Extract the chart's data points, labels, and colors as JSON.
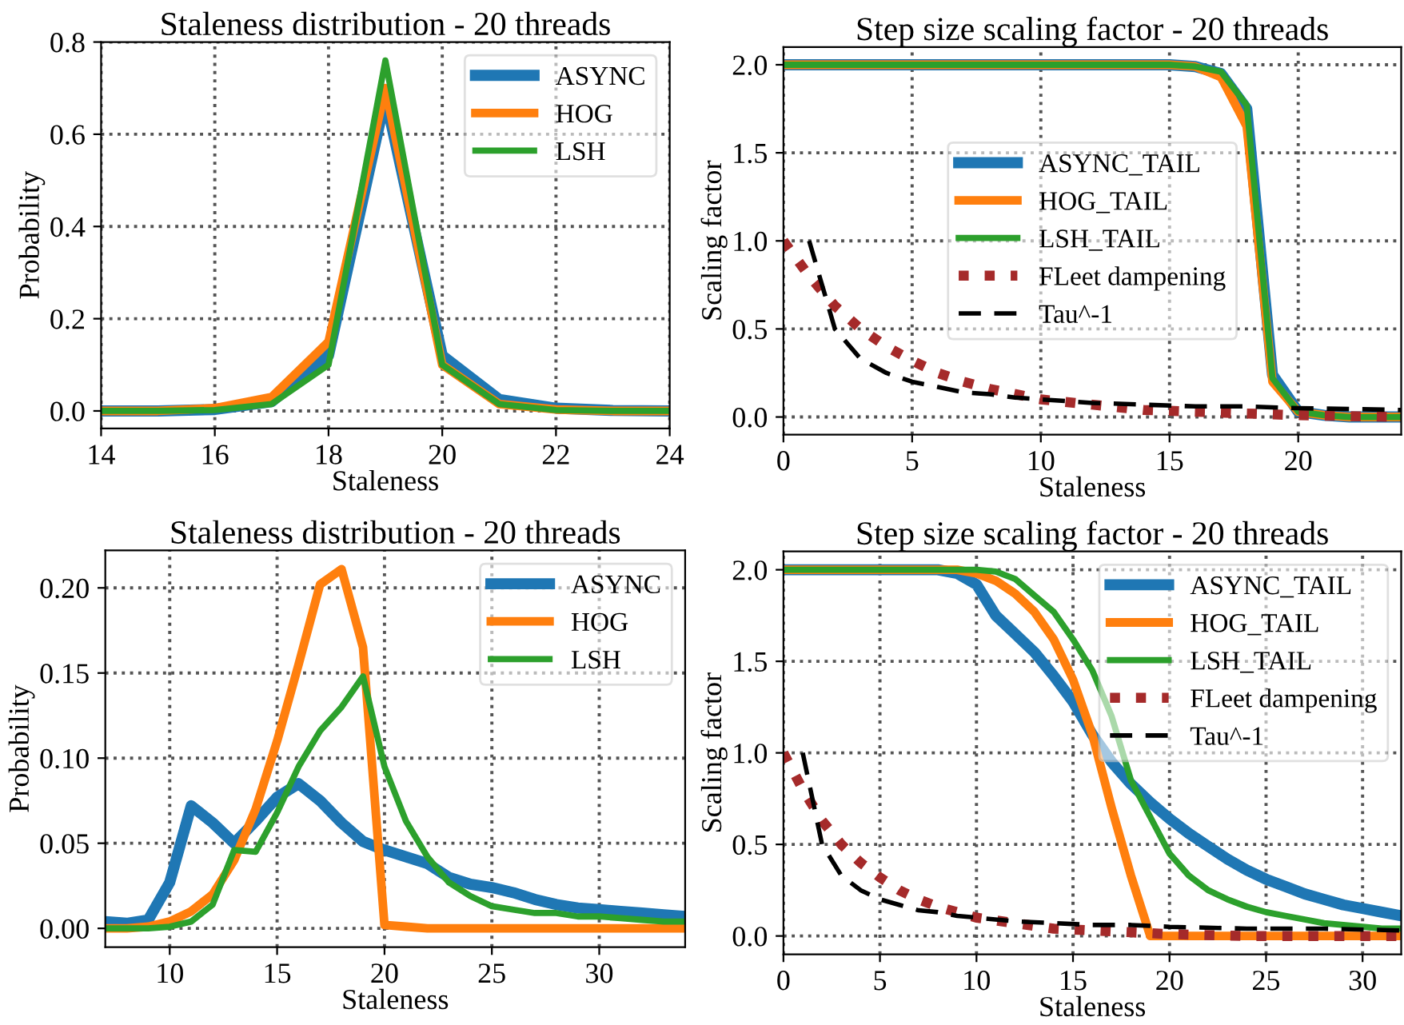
{
  "chart_data": [
    {
      "type": "line",
      "title": "Staleness distribution - 20 threads",
      "xlabel": "Staleness",
      "ylabel": "Probability",
      "xlim": [
        14,
        24
      ],
      "ylim": [
        -0.038,
        0.8
      ],
      "xticks": [
        14,
        16,
        18,
        20,
        22,
        24
      ],
      "yticks": [
        {
          "value": 0,
          "label": "0.0"
        },
        0.2,
        0.4,
        0.6,
        0.8
      ],
      "grid": true,
      "legend": "top right",
      "series": [
        {
          "name": "ASYNC",
          "color": "#1f77b4",
          "x": [
            14,
            15,
            16,
            17,
            18,
            19,
            20,
            21,
            22,
            23,
            24
          ],
          "values": [
            0,
            0,
            0.003,
            0.02,
            0.12,
            0.68,
            0.12,
            0.025,
            0.006,
            0.001,
            0
          ]
        },
        {
          "name": "HOG",
          "color": "#ff7f0e",
          "x": [
            14,
            15,
            16,
            17,
            18,
            19,
            20,
            21,
            22,
            23,
            24
          ],
          "values": [
            0,
            0,
            0.006,
            0.03,
            0.15,
            0.7,
            0.1,
            0.015,
            0.003,
            0,
            0
          ]
        },
        {
          "name": "LSH",
          "color": "#2ca02c",
          "x": [
            14,
            15,
            16,
            17,
            18,
            19,
            20,
            21,
            22,
            23,
            24
          ],
          "values": [
            0,
            0,
            0.002,
            0.015,
            0.1,
            0.76,
            0.1,
            0.015,
            0.002,
            0,
            0
          ]
        }
      ]
    },
    {
      "type": "line",
      "title": "Step size scaling factor - 20 threads",
      "xlabel": "Staleness",
      "ylabel": "Scaling factor",
      "xlim": [
        0,
        24
      ],
      "ylim": [
        -0.1,
        2.1
      ],
      "xticks": [
        0,
        5,
        10,
        15,
        20
      ],
      "yticks": [
        {
          "value": 0,
          "label": "0.0"
        },
        0.5,
        {
          "value": 1,
          "label": "1.0"
        },
        1.5,
        {
          "value": 2,
          "label": "2.0"
        }
      ],
      "grid": true,
      "legend": "center",
      "series": [
        {
          "name": "ASYNC_TAIL",
          "color": "#1f77b4",
          "x": [
            0,
            5,
            10,
            15,
            16,
            17,
            18,
            19,
            20,
            21,
            22,
            23,
            24
          ],
          "values": [
            2,
            2,
            2,
            2,
            1.99,
            1.95,
            1.75,
            0.24,
            0.03,
            0.01,
            0,
            0,
            0
          ]
        },
        {
          "name": "HOG_TAIL",
          "color": "#ff7f0e",
          "x": [
            0,
            5,
            10,
            15,
            16,
            17,
            18,
            19,
            20,
            21,
            22,
            23,
            24
          ],
          "values": [
            2,
            2,
            2,
            2,
            1.99,
            1.93,
            1.65,
            0.2,
            0.03,
            0.01,
            0,
            0,
            0
          ]
        },
        {
          "name": "LSH_TAIL",
          "color": "#2ca02c",
          "x": [
            0,
            5,
            10,
            15,
            16,
            17,
            18,
            19,
            20,
            21,
            22,
            23,
            24
          ],
          "values": [
            2,
            2,
            2,
            2,
            1.99,
            1.96,
            1.77,
            0.22,
            0.03,
            0.01,
            0,
            0,
            0
          ]
        },
        {
          "name": "FLeet dampening",
          "color": "#a52a2a",
          "line_style": "dotted",
          "x": [
            0,
            1,
            2,
            3,
            4,
            5,
            6,
            7,
            8,
            10,
            12,
            14,
            16,
            18,
            20,
            24
          ],
          "values": [
            1.0,
            0.8,
            0.63,
            0.5,
            0.4,
            0.32,
            0.25,
            0.2,
            0.16,
            0.1,
            0.07,
            0.04,
            0.03,
            0.02,
            0.01,
            0
          ]
        },
        {
          "name": "Tau^-1",
          "color": "#000000",
          "line_style": "dashed",
          "x": [
            1,
            2,
            3,
            4,
            5,
            6,
            7,
            8,
            9,
            10,
            12,
            14,
            16,
            18,
            20,
            24
          ],
          "values": [
            1.0,
            0.5,
            0.33,
            0.25,
            0.2,
            0.17,
            0.14,
            0.13,
            0.11,
            0.1,
            0.08,
            0.07,
            0.06,
            0.06,
            0.05,
            0.04
          ]
        }
      ]
    },
    {
      "type": "line",
      "title": "Staleness distribution - 20 threads",
      "xlabel": "Staleness",
      "ylabel": "Probability",
      "xlim": [
        7,
        34
      ],
      "ylim": [
        -0.011,
        0.222
      ],
      "xticks": [
        10,
        15,
        20,
        25,
        30
      ],
      "yticks": [
        {
          "value": 0,
          "label": "0.00"
        },
        0.05,
        {
          "value": 0.1,
          "label": "0.10"
        },
        0.15,
        {
          "value": 0.2,
          "label": "0.20"
        }
      ],
      "grid": true,
      "legend": "top right",
      "series": [
        {
          "name": "ASYNC",
          "color": "#1f77b4",
          "x": [
            7,
            8,
            9,
            10,
            11,
            12,
            13,
            14,
            15,
            16,
            17,
            18,
            19,
            20,
            21,
            22,
            23,
            24,
            25,
            26,
            27,
            28,
            29,
            30,
            31,
            32,
            33,
            34
          ],
          "values": [
            0.004,
            0.003,
            0.005,
            0.027,
            0.072,
            0.062,
            0.05,
            0.063,
            0.077,
            0.085,
            0.075,
            0.062,
            0.051,
            0.046,
            0.042,
            0.038,
            0.03,
            0.026,
            0.024,
            0.021,
            0.017,
            0.014,
            0.012,
            0.011,
            0.01,
            0.009,
            0.008,
            0.007
          ]
        },
        {
          "name": "HOG",
          "color": "#ff7f0e",
          "x": [
            7,
            8,
            9,
            10,
            11,
            12,
            13,
            14,
            15,
            16,
            17,
            18,
            19,
            20,
            21,
            22,
            23,
            24,
            25,
            26,
            27,
            28,
            29,
            30,
            31,
            32,
            33,
            34
          ],
          "values": [
            0,
            0,
            0.001,
            0.004,
            0.01,
            0.02,
            0.04,
            0.07,
            0.11,
            0.155,
            0.202,
            0.211,
            0.165,
            0.002,
            0.001,
            0,
            0,
            0,
            0,
            0,
            0,
            0,
            0,
            0,
            0,
            0,
            0,
            0
          ]
        },
        {
          "name": "LSH",
          "color": "#2ca02c",
          "x": [
            7,
            8,
            9,
            10,
            11,
            12,
            13,
            14,
            15,
            16,
            17,
            18,
            19,
            20,
            21,
            22,
            23,
            24,
            25,
            26,
            27,
            28,
            29,
            30,
            31,
            32,
            33,
            34
          ],
          "values": [
            0,
            0,
            0,
            0.001,
            0.004,
            0.014,
            0.046,
            0.045,
            0.068,
            0.095,
            0.116,
            0.13,
            0.148,
            0.095,
            0.063,
            0.042,
            0.027,
            0.019,
            0.013,
            0.011,
            0.009,
            0.009,
            0.007,
            0.007,
            0.006,
            0.005,
            0.004,
            0.004
          ]
        }
      ]
    },
    {
      "type": "line",
      "title": "Step size scaling factor - 20 threads",
      "xlabel": "Staleness",
      "ylabel": "Scaling factor",
      "xlim": [
        0,
        32
      ],
      "ylim": [
        -0.1,
        2.1
      ],
      "xticks": [
        0,
        5,
        10,
        15,
        20,
        25,
        30
      ],
      "yticks": [
        {
          "value": 0,
          "label": "0.0"
        },
        0.5,
        {
          "value": 1,
          "label": "1.0"
        },
        1.5,
        {
          "value": 2,
          "label": "2.0"
        }
      ],
      "grid": true,
      "legend": "top right",
      "series": [
        {
          "name": "ASYNC_TAIL",
          "color": "#1f77b4",
          "x": [
            0,
            8,
            9,
            10,
            11,
            12,
            13,
            14,
            15,
            16,
            17,
            18,
            19,
            20,
            21,
            22,
            23,
            24,
            25,
            26,
            27,
            28,
            29,
            30,
            31,
            32
          ],
          "values": [
            2,
            2,
            1.98,
            1.92,
            1.75,
            1.65,
            1.55,
            1.42,
            1.28,
            1.1,
            0.95,
            0.83,
            0.73,
            0.64,
            0.56,
            0.49,
            0.42,
            0.36,
            0.31,
            0.27,
            0.23,
            0.2,
            0.17,
            0.15,
            0.13,
            0.11
          ]
        },
        {
          "name": "HOG_TAIL",
          "color": "#ff7f0e",
          "x": [
            0,
            9,
            10,
            11,
            12,
            13,
            14,
            15,
            16,
            17,
            18,
            19,
            32
          ],
          "values": [
            2,
            2,
            1.98,
            1.94,
            1.87,
            1.77,
            1.62,
            1.4,
            1.1,
            0.7,
            0.33,
            0,
            0
          ]
        },
        {
          "name": "LSH_TAIL",
          "color": "#2ca02c",
          "x": [
            0,
            10,
            11,
            12,
            13,
            14,
            15,
            16,
            17,
            18,
            19,
            20,
            21,
            22,
            23,
            24,
            25,
            26,
            27,
            28,
            29,
            30,
            31,
            32
          ],
          "values": [
            2,
            2,
            1.99,
            1.95,
            1.86,
            1.77,
            1.62,
            1.45,
            1.2,
            0.85,
            0.65,
            0.45,
            0.33,
            0.25,
            0.2,
            0.16,
            0.13,
            0.11,
            0.09,
            0.07,
            0.06,
            0.05,
            0.04,
            0.04
          ]
        },
        {
          "name": "FLeet dampening",
          "color": "#a52a2a",
          "line_style": "dotted",
          "x": [
            0,
            1,
            2,
            3,
            4,
            5,
            6,
            7,
            8,
            10,
            12,
            14,
            16,
            18,
            20,
            24,
            28,
            32
          ],
          "values": [
            1.0,
            0.8,
            0.63,
            0.5,
            0.4,
            0.32,
            0.25,
            0.2,
            0.16,
            0.1,
            0.07,
            0.04,
            0.03,
            0.02,
            0.01,
            0,
            0,
            0
          ]
        },
        {
          "name": "Tau^-1",
          "color": "#000000",
          "line_style": "dashed",
          "x": [
            1,
            2,
            3,
            4,
            5,
            6,
            7,
            8,
            9,
            10,
            12,
            14,
            16,
            18,
            20,
            24,
            28,
            32
          ],
          "values": [
            1.0,
            0.5,
            0.33,
            0.25,
            0.2,
            0.17,
            0.14,
            0.13,
            0.11,
            0.1,
            0.08,
            0.07,
            0.06,
            0.06,
            0.05,
            0.04,
            0.04,
            0.03
          ]
        }
      ]
    }
  ]
}
